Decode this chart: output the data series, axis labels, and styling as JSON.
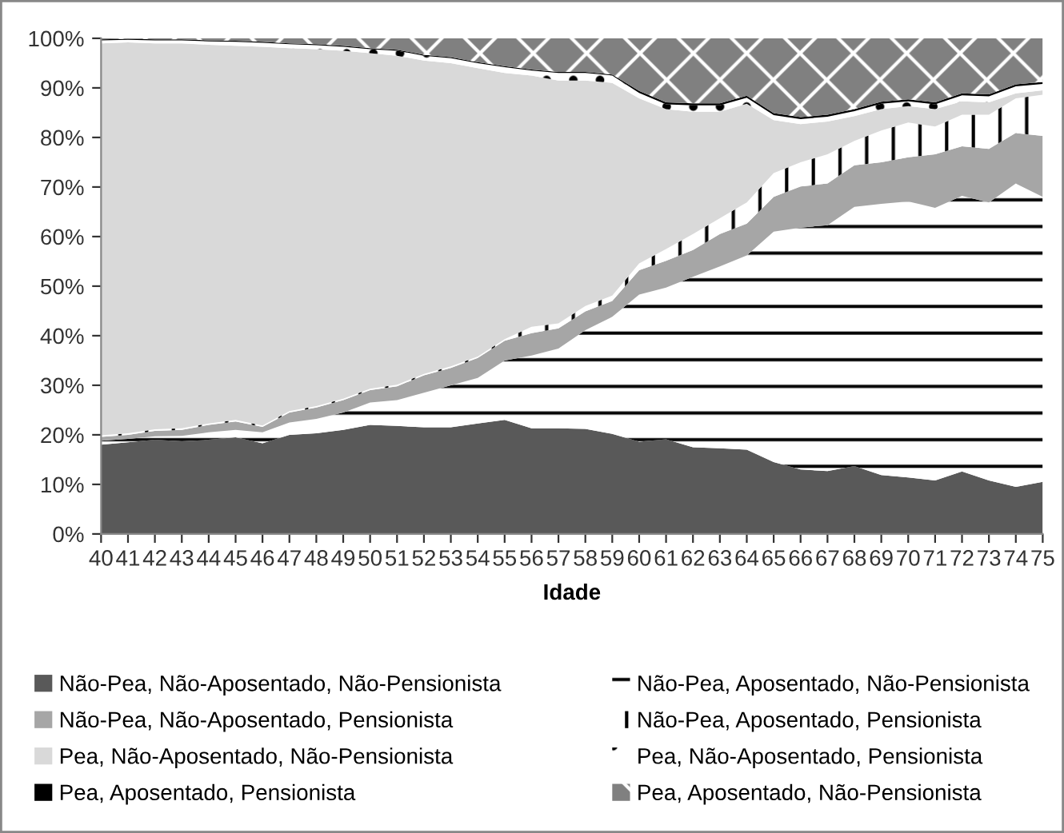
{
  "chart_data": {
    "type": "area",
    "stacked": true,
    "xlabel": "Idade",
    "categories": [
      "40",
      "41",
      "42",
      "43",
      "44",
      "45",
      "46",
      "47",
      "48",
      "49",
      "50",
      "51",
      "52",
      "53",
      "54",
      "55",
      "56",
      "57",
      "58",
      "59",
      "60",
      "61",
      "62",
      "63",
      "64",
      "65",
      "66",
      "67",
      "68",
      "69",
      "70",
      "71",
      "72",
      "73",
      "74",
      "75"
    ],
    "ylim": [
      0,
      100
    ],
    "yticks": [
      {
        "value": 0,
        "label": "0%"
      },
      {
        "value": 10,
        "label": "10%"
      },
      {
        "value": 20,
        "label": "20%"
      },
      {
        "value": 30,
        "label": "30%"
      },
      {
        "value": 40,
        "label": "40%"
      },
      {
        "value": 50,
        "label": "50%"
      },
      {
        "value": 60,
        "label": "60%"
      },
      {
        "value": 70,
        "label": "70%"
      },
      {
        "value": 80,
        "label": "80%"
      },
      {
        "value": 90,
        "label": "90%"
      },
      {
        "value": 100,
        "label": "100%"
      }
    ],
    "grid": false,
    "legend": "bottom",
    "series": [
      {
        "name": "Não-Pea, Não-Aposentado, Não-Pensionista",
        "color": "#595959",
        "values": [
          18,
          18.5,
          19,
          18.7,
          19,
          19.5,
          18.3,
          20,
          20.3,
          21,
          22,
          21.8,
          21.5,
          21.5,
          22.3,
          23,
          21.3,
          21.3,
          21.2,
          20.2,
          18.6,
          19.1,
          17.5,
          17.3,
          17,
          14.5,
          13,
          12.7,
          13.7,
          11.9,
          11.4,
          10.8,
          12.6,
          10.8,
          9.5,
          10.5
        ]
      },
      {
        "name": "Não-Pea, Aposentado, Não-Pensionista",
        "color": "#ffffff",
        "values": [
          0.8,
          0.7,
          0.7,
          1.1,
          1.5,
          1.5,
          2.2,
          2.5,
          2.9,
          3.5,
          4.5,
          5.2,
          7,
          8.5,
          9.2,
          12,
          14.7,
          16.1,
          19.9,
          23.6,
          29.7,
          30.6,
          34.4,
          36.7,
          39.2,
          46.5,
          48.8,
          49.6,
          52.3,
          54.7,
          55.7,
          55,
          55.6,
          56.1,
          61.2,
          57.5
        ]
      },
      {
        "name": "Não-Pea, Não-Aposentado, Pensionista",
        "color": "#a6a6a6",
        "values": [
          0.8,
          0.8,
          1.1,
          1.2,
          1.5,
          1.7,
          1.1,
          2,
          2.3,
          2.5,
          2.5,
          2.8,
          3.5,
          3.5,
          4,
          4,
          4.5,
          4.1,
          3.8,
          3.2,
          4.9,
          5.4,
          5.4,
          6.5,
          6.4,
          7,
          8.3,
          8.4,
          8.4,
          8.4,
          8.9,
          10.8,
          10,
          10.8,
          10.2,
          12.3
        ]
      },
      {
        "name": "Não-Pea, Aposentado, Pensionista",
        "color": "#ffffff",
        "values": [
          0.3,
          0.3,
          0.3,
          0.3,
          0.3,
          0.3,
          0.3,
          0.3,
          0.3,
          0.3,
          0.3,
          0.3,
          0.3,
          0.3,
          0.3,
          0.3,
          1.3,
          1,
          1.1,
          1.1,
          1.4,
          2.4,
          3.2,
          3.2,
          4.3,
          4.8,
          4.9,
          5.9,
          4.9,
          6.4,
          7,
          5.6,
          6.4,
          6.9,
          7,
          8.3
        ]
      },
      {
        "name": "Pea, Não-Aposentado, Não-Pensionista",
        "color": "#d9d9d9",
        "values": [
          79.1,
          78.9,
          77.9,
          77.7,
          76.4,
          75.5,
          76.4,
          73.2,
          72,
          70.2,
          67.7,
          66.4,
          63.2,
          61.2,
          58.2,
          53.7,
          50.7,
          49,
          45.5,
          42.9,
          33.3,
          28.2,
          24.7,
          21.5,
          19.9,
          10.7,
          7.7,
          6.6,
          5,
          4.3,
          3.3,
          3.5,
          2.7,
          2.5,
          1,
          0.9
        ]
      },
      {
        "name": "Pea, Não-Aposentado, Pensionista",
        "color": "#ffffff",
        "values": [
          0.6,
          0.5,
          0.6,
          0.6,
          0.7,
          0.8,
          0.8,
          0.8,
          0.8,
          0.8,
          0.8,
          1,
          1,
          1,
          1,
          1.2,
          1,
          1.5,
          1.5,
          1.5,
          1.1,
          1,
          1.3,
          1.3,
          1.2,
          1,
          1,
          1,
          1,
          1.1,
          1,
          1,
          1.2,
          1.2,
          1.4,
          1.3
        ]
      },
      {
        "name": "Pea, Aposentado, Pensionista",
        "color": "#000000",
        "values": [
          0.2,
          0.2,
          0.2,
          0.2,
          0.2,
          0.2,
          0.2,
          0.2,
          0.2,
          0.2,
          0.2,
          0.2,
          0.2,
          0.2,
          0.2,
          0.2,
          0.2,
          0.2,
          0.2,
          0.2,
          0.4,
          0.4,
          0.4,
          0.4,
          0.4,
          0.4,
          0.4,
          0.4,
          0.4,
          0.4,
          0.4,
          0.4,
          0.4,
          0.4,
          0.4,
          0.4
        ]
      },
      {
        "name": "Pea, Aposentado, Não-Pensionista",
        "color": "#808080",
        "values": [
          0.2,
          0.1,
          0.2,
          0.2,
          0.4,
          0.5,
          0.7,
          1,
          1.2,
          1.5,
          2,
          2.3,
          3.3,
          3.8,
          4.8,
          5.6,
          6.3,
          6.8,
          6.8,
          7.3,
          10.6,
          12.9,
          13.1,
          13.1,
          11.6,
          15.1,
          15.9,
          15.4,
          14.3,
          12.8,
          12.3,
          12.9,
          11.1,
          11.3,
          9.3,
          8.8
        ]
      }
    ]
  }
}
